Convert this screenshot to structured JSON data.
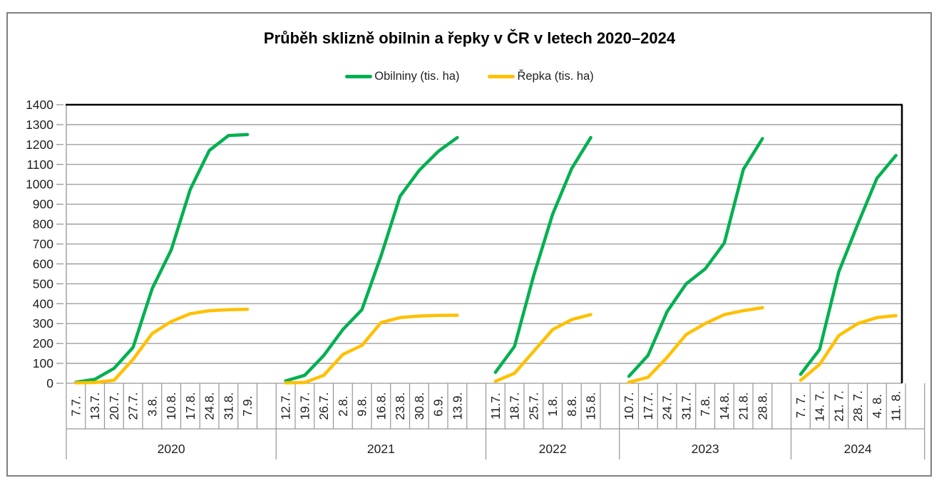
{
  "chart_data": {
    "type": "line",
    "title": "Průběh sklizně obilnin a řepky v ČR v letech 2020–2024",
    "xlabel": "",
    "ylabel": "",
    "ylim": [
      0,
      1400
    ],
    "yticks": [
      0,
      100,
      200,
      300,
      400,
      500,
      600,
      700,
      800,
      900,
      1000,
      1100,
      1200,
      1300,
      1400
    ],
    "grid": true,
    "legend_position": "top-center",
    "units": "tis. ha",
    "series": [
      {
        "key": "obilniny",
        "name": "Obilniny (tis. ha)",
        "color": "#00B050"
      },
      {
        "key": "repka",
        "name": "Řepka (tis. ha)",
        "color": "#FFC000"
      }
    ],
    "groups": [
      {
        "year": "2020",
        "dates": [
          "7.7.",
          "13.7.",
          "20.7.",
          "27.7.",
          "3.8.",
          "10.8.",
          "17.8.",
          "24.8.",
          "31.8.",
          "7.9."
        ],
        "obilniny": [
          5,
          20,
          75,
          180,
          475,
          670,
          975,
          1170,
          1245,
          1250
        ],
        "repka": [
          2,
          4,
          15,
          120,
          250,
          310,
          350,
          365,
          370,
          372
        ]
      },
      {
        "year": "2021",
        "dates": [
          "12.7.",
          "19.7.",
          "26.7.",
          "2.8.",
          "9.8.",
          "16.8.",
          "23.8.",
          "30.8.",
          "6.9.",
          "13.9."
        ],
        "obilniny": [
          12,
          40,
          140,
          270,
          370,
          640,
          940,
          1070,
          1165,
          1235
        ],
        "repka": [
          2,
          4,
          40,
          145,
          190,
          305,
          330,
          338,
          341,
          342
        ]
      },
      {
        "year": "2022",
        "dates": [
          "11.7.",
          "18.7.",
          "25.7.",
          "1.8.",
          "8.8.",
          "15.8."
        ],
        "obilniny": [
          55,
          185,
          540,
          850,
          1080,
          1235
        ],
        "repka": [
          10,
          50,
          160,
          270,
          320,
          345
        ]
      },
      {
        "year": "2023",
        "dates": [
          "10.7.",
          "17.7.",
          "24.7.",
          "31.7.",
          "7.8.",
          "14.8.",
          "21.8.",
          "28.8."
        ],
        "obilniny": [
          35,
          140,
          360,
          500,
          575,
          705,
          1075,
          1230
        ],
        "repka": [
          5,
          30,
          130,
          245,
          300,
          345,
          365,
          380
        ]
      },
      {
        "year": "2024",
        "dates": [
          "7. 7.",
          "14. 7.",
          "21. 7.",
          "28. 7.",
          "4. 8.",
          "11. 8."
        ],
        "obilniny": [
          45,
          170,
          560,
          800,
          1030,
          1145
        ],
        "repka": [
          15,
          95,
          240,
          300,
          330,
          340
        ]
      }
    ]
  }
}
